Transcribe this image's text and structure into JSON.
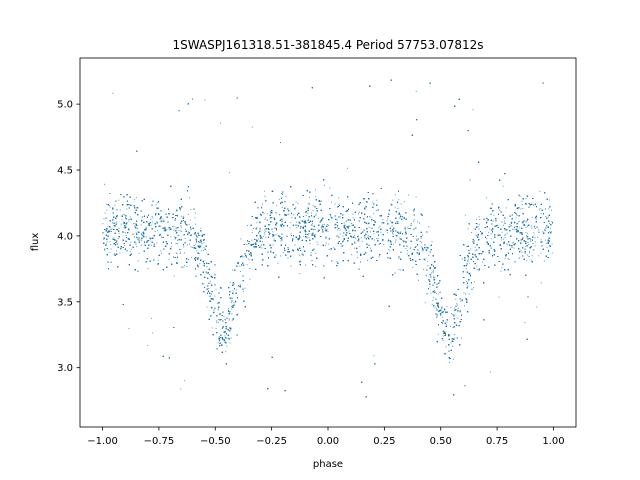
{
  "chart_data": {
    "type": "scatter",
    "title": "1SWASPJ161318.51-381845.4 Period 57753.07812s",
    "xlabel": "phase",
    "ylabel": "flux",
    "xlim": [
      -1.1,
      1.1
    ],
    "ylim": [
      2.55,
      5.35
    ],
    "xticks": [
      -1.0,
      -0.75,
      -0.5,
      -0.25,
      0.0,
      0.25,
      0.5,
      0.75,
      1.0
    ],
    "xtick_labels": [
      "−1.00",
      "−0.75",
      "−0.50",
      "−0.25",
      "0.00",
      "0.25",
      "0.50",
      "0.75",
      "1.00"
    ],
    "yticks": [
      3.0,
      3.5,
      4.0,
      4.5,
      5.0
    ],
    "ytick_labels": [
      "3.0",
      "3.5",
      "4.0",
      "4.5",
      "5.0"
    ],
    "grid": false,
    "marker_color": "#1f77b4",
    "series": [
      {
        "baseline_flux": 4.03,
        "eclipses": [
          {
            "phase_center": -0.46,
            "min_flux": 3.2
          },
          {
            "phase_center": 0.54,
            "min_flux": 3.2
          }
        ],
        "sample_points": [
          {
            "x": -1.0,
            "y": 4.05
          },
          {
            "x": -0.75,
            "y": 4.05
          },
          {
            "x": -0.6,
            "y": 3.95
          },
          {
            "x": -0.5,
            "y": 3.45
          },
          {
            "x": -0.46,
            "y": 3.2
          },
          {
            "x": -0.4,
            "y": 3.5
          },
          {
            "x": -0.3,
            "y": 3.95
          },
          {
            "x": -0.25,
            "y": 4.02
          },
          {
            "x": 0.0,
            "y": 4.05
          },
          {
            "x": 0.25,
            "y": 4.03
          },
          {
            "x": 0.4,
            "y": 3.95
          },
          {
            "x": 0.5,
            "y": 3.45
          },
          {
            "x": 0.54,
            "y": 3.2
          },
          {
            "x": 0.6,
            "y": 3.5
          },
          {
            "x": 0.7,
            "y": 3.95
          },
          {
            "x": 0.75,
            "y": 4.02
          },
          {
            "x": 1.0,
            "y": 4.05
          }
        ]
      }
    ]
  }
}
